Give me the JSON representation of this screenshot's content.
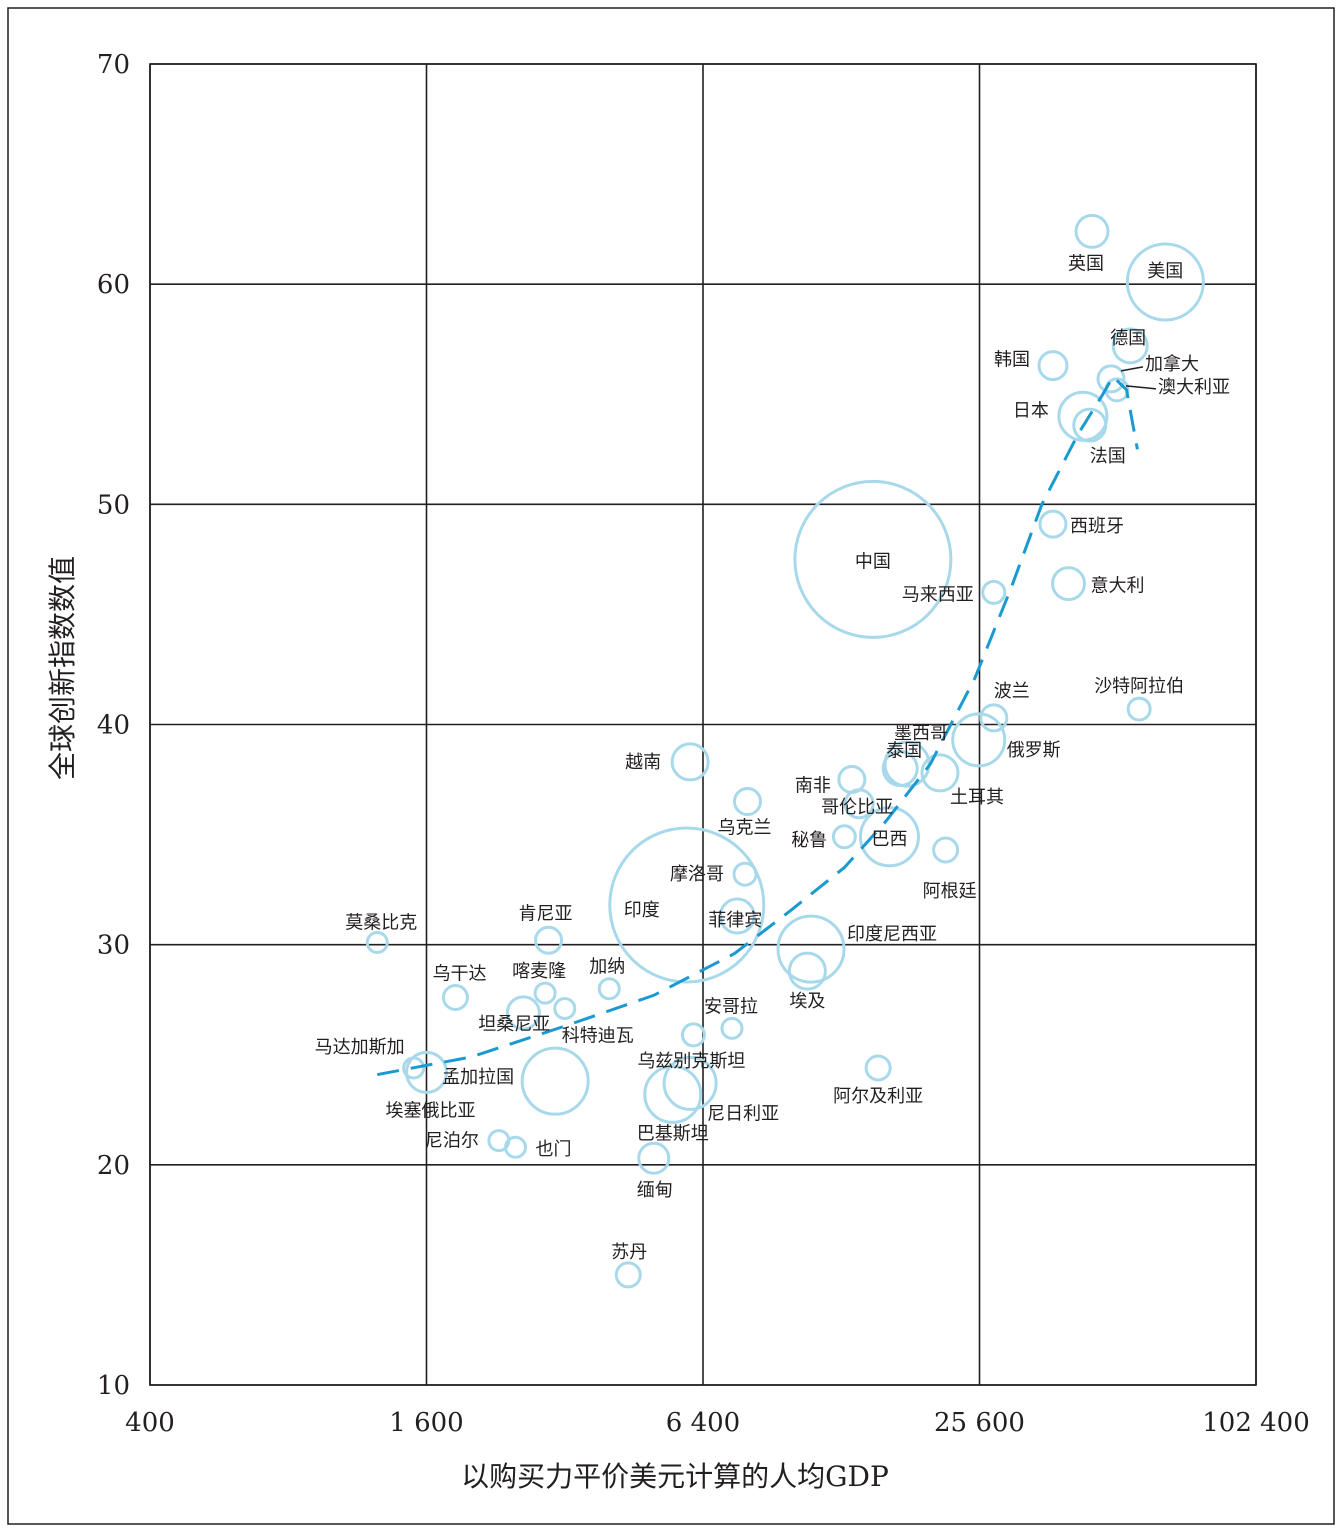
{
  "chart_data": {
    "type": "scatter",
    "title": "",
    "xlabel": "以购买力平价美元计算的人均GDP",
    "ylabel": "全球创新指数数值",
    "x_scale": "log2",
    "xlim": [
      400,
      102400
    ],
    "ylim": [
      10,
      70
    ],
    "x_ticks": [
      400,
      1600,
      6400,
      25600,
      102400
    ],
    "x_tick_labels": [
      "400",
      "1 600",
      "6 400",
      "25 600",
      "102 400"
    ],
    "y_ticks": [
      10,
      20,
      30,
      40,
      50,
      60,
      70
    ],
    "y_tick_labels": [
      "10",
      "20",
      "30",
      "40",
      "50",
      "60",
      "70"
    ],
    "grid": true,
    "colors": {
      "bubble": "#a8d9ea",
      "trend": "#1a9ad1",
      "grid": "#231f20",
      "text": "#231f20"
    },
    "points": [
      {
        "label": "美国",
        "x": 65000,
        "y": 60.1,
        "size": 38
      },
      {
        "label": "英国",
        "x": 45000,
        "y": 62.4,
        "size": 16
      },
      {
        "label": "德国",
        "x": 54500,
        "y": 57.2,
        "size": 17
      },
      {
        "label": "加拿大",
        "x": 49500,
        "y": 55.7,
        "size": 13
      },
      {
        "label": "澳大利亚",
        "x": 51000,
        "y": 55.2,
        "size": 11
      },
      {
        "label": "韩国",
        "x": 37000,
        "y": 56.3,
        "size": 14
      },
      {
        "label": "日本",
        "x": 43000,
        "y": 54.0,
        "size": 24
      },
      {
        "label": "法国",
        "x": 44500,
        "y": 53.6,
        "size": 16
      },
      {
        "label": "西班牙",
        "x": 37000,
        "y": 49.1,
        "size": 13
      },
      {
        "label": "意大利",
        "x": 40000,
        "y": 46.4,
        "size": 16
      },
      {
        "label": "中国",
        "x": 15000,
        "y": 47.5,
        "size": 78
      },
      {
        "label": "马来西亚",
        "x": 27500,
        "y": 46.0,
        "size": 11
      },
      {
        "label": "波兰",
        "x": 27500,
        "y": 40.3,
        "size": 13
      },
      {
        "label": "俄罗斯",
        "x": 25500,
        "y": 39.3,
        "size": 26
      },
      {
        "label": "沙特阿拉伯",
        "x": 57000,
        "y": 40.7,
        "size": 11
      },
      {
        "label": "墨西哥",
        "x": 17800,
        "y": 38.2,
        "size": 22
      },
      {
        "label": "泰国",
        "x": 17200,
        "y": 38.0,
        "size": 17
      },
      {
        "label": "南非",
        "x": 13500,
        "y": 37.5,
        "size": 13
      },
      {
        "label": "土耳其",
        "x": 21000,
        "y": 37.8,
        "size": 18
      },
      {
        "label": "哥伦比亚",
        "x": 14000,
        "y": 36.4,
        "size": 14
      },
      {
        "label": "秘鲁",
        "x": 13000,
        "y": 34.9,
        "size": 11
      },
      {
        "label": "巴西",
        "x": 16300,
        "y": 34.9,
        "size": 29
      },
      {
        "label": "阿根廷",
        "x": 21600,
        "y": 34.3,
        "size": 12
      },
      {
        "label": "越南",
        "x": 6000,
        "y": 38.3,
        "size": 18
      },
      {
        "label": "乌克兰",
        "x": 8000,
        "y": 36.5,
        "size": 13
      },
      {
        "label": "摩洛哥",
        "x": 7900,
        "y": 33.2,
        "size": 11
      },
      {
        "label": "菲律宾",
        "x": 7600,
        "y": 31.3,
        "size": 17
      },
      {
        "label": "印度",
        "x": 5900,
        "y": 31.8,
        "size": 77
      },
      {
        "label": "印度尼西亚",
        "x": 11000,
        "y": 29.8,
        "size": 33
      },
      {
        "label": "埃及",
        "x": 10800,
        "y": 28.8,
        "size": 18
      },
      {
        "label": "安哥拉",
        "x": 7400,
        "y": 26.2,
        "size": 10
      },
      {
        "label": "阿尔及利亚",
        "x": 15400,
        "y": 24.4,
        "size": 12
      },
      {
        "label": "乌兹别克斯坦",
        "x": 6100,
        "y": 25.9,
        "size": 11
      },
      {
        "label": "尼日利亚",
        "x": 6000,
        "y": 23.7,
        "size": 26
      },
      {
        "label": "巴基斯坦",
        "x": 5500,
        "y": 23.2,
        "size": 28
      },
      {
        "label": "缅甸",
        "x": 5000,
        "y": 20.3,
        "size": 15
      },
      {
        "label": "苏丹",
        "x": 4400,
        "y": 15.0,
        "size": 12
      },
      {
        "label": "加纳",
        "x": 4000,
        "y": 28.0,
        "size": 10
      },
      {
        "label": "科特迪瓦",
        "x": 3200,
        "y": 27.1,
        "size": 10
      },
      {
        "label": "喀麦隆",
        "x": 2900,
        "y": 27.8,
        "size": 10
      },
      {
        "label": "坦桑尼亚",
        "x": 2600,
        "y": 26.9,
        "size": 16
      },
      {
        "label": "肯尼亚",
        "x": 2950,
        "y": 30.2,
        "size": 13
      },
      {
        "label": "孟加拉国",
        "x": 3050,
        "y": 23.8,
        "size": 33
      },
      {
        "label": "乌干达",
        "x": 1850,
        "y": 27.6,
        "size": 12
      },
      {
        "label": "马达加斯加",
        "x": 1500,
        "y": 24.4,
        "size": 10
      },
      {
        "label": "埃塞俄比亚",
        "x": 1600,
        "y": 24.2,
        "size": 20
      },
      {
        "label": "莫桑比克",
        "x": 1250,
        "y": 30.1,
        "size": 10
      },
      {
        "label": "尼泊尔",
        "x": 2300,
        "y": 21.1,
        "size": 10
      },
      {
        "label": "也门",
        "x": 2500,
        "y": 20.8,
        "size": 10
      }
    ],
    "trend_line": [
      {
        "x": 1250,
        "y": 24.1
      },
      {
        "x": 2000,
        "y": 24.9
      },
      {
        "x": 3200,
        "y": 26.3
      },
      {
        "x": 5000,
        "y": 27.7
      },
      {
        "x": 7500,
        "y": 29.6
      },
      {
        "x": 10000,
        "y": 31.6
      },
      {
        "x": 13000,
        "y": 33.5
      },
      {
        "x": 16000,
        "y": 35.6
      },
      {
        "x": 20000,
        "y": 38.2
      },
      {
        "x": 25000,
        "y": 42.1
      },
      {
        "x": 30000,
        "y": 46.2
      },
      {
        "x": 35000,
        "y": 50.0
      },
      {
        "x": 42000,
        "y": 53.2
      },
      {
        "x": 47500,
        "y": 55.0
      },
      {
        "x": 50000,
        "y": 55.8
      },
      {
        "x": 53500,
        "y": 55.2
      },
      {
        "x": 56500,
        "y": 52.5
      }
    ]
  }
}
